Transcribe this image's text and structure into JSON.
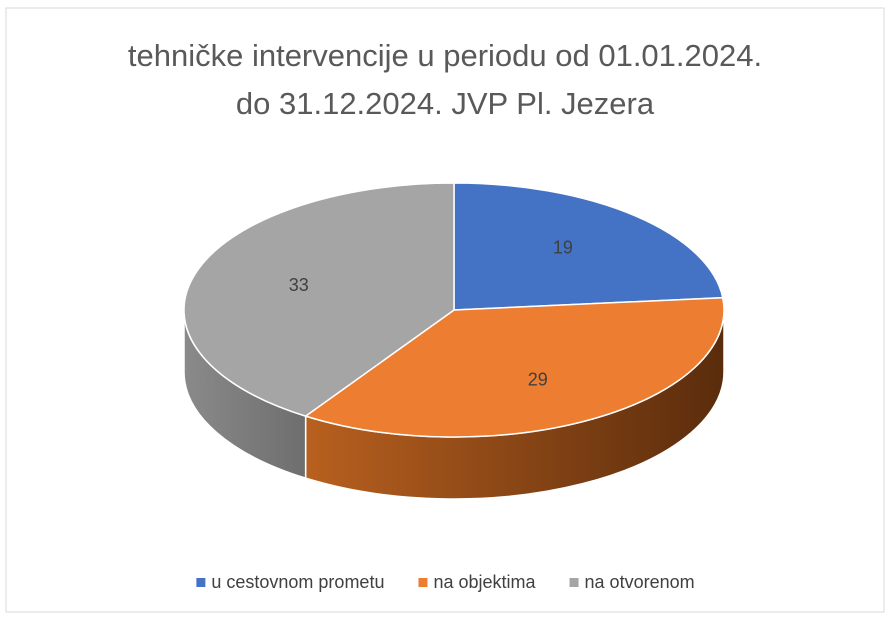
{
  "chart_data": {
    "type": "pie3d",
    "title": "tehničke intervencije u periodu od 01.01.2024. do 31.12.2024. JVP Pl. Jezera",
    "categories": [
      "u cestovnom prometu",
      "na objektima",
      "na otvorenom"
    ],
    "values": [
      19,
      29,
      33
    ],
    "colors": [
      "#4472c4",
      "#ed7d31",
      "#a5a5a5"
    ],
    "legend": "bottom"
  }
}
